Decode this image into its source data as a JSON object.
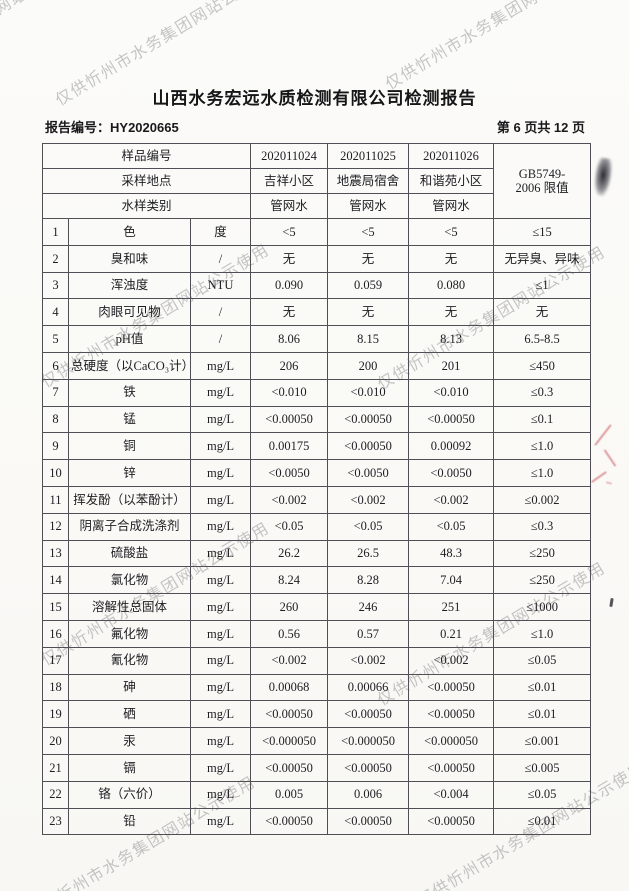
{
  "watermark": {
    "text": "仅供忻州市水务集团网站公示使用"
  },
  "title": "山西水务宏远水质检测有限公司检测报告",
  "meta": {
    "report_no_label": "报告编号：",
    "report_no": "HY2020665",
    "page_info": "第 6 页共 12 页"
  },
  "colors": {
    "paper": "#fbfbf9",
    "ink": "#1e1e23",
    "table_border": "#4f4f55",
    "watermark_gray": "#7a7a7c",
    "red_pen": "#c63e48"
  },
  "table": {
    "header": {
      "sample_no_label": "样品编号",
      "sample_nos": [
        "202011024",
        "202011025",
        "202011026"
      ],
      "location_label": "采样地点",
      "locations": [
        "吉祥小区",
        "地震局宿舍",
        "和谐苑小区"
      ],
      "type_label": "水样类别",
      "types": [
        "管网水",
        "管网水",
        "管网水"
      ],
      "limit_line1": "GB5749-",
      "limit_line2": "2006 限值"
    },
    "rows": [
      {
        "no": "1",
        "name": "色",
        "unit": "度",
        "v1": "<5",
        "v2": "<5",
        "v3": "<5",
        "limit": "≤15"
      },
      {
        "no": "2",
        "name": "臭和味",
        "unit": "/",
        "v1": "无",
        "v2": "无",
        "v3": "无",
        "limit": "无异臭、异味"
      },
      {
        "no": "3",
        "name": "浑浊度",
        "unit": "NTU",
        "v1": "0.090",
        "v2": "0.059",
        "v3": "0.080",
        "limit": "≤1"
      },
      {
        "no": "4",
        "name": "肉眼可见物",
        "unit": "/",
        "v1": "无",
        "v2": "无",
        "v3": "无",
        "limit": "无"
      },
      {
        "no": "5",
        "name": "pH值",
        "unit": "/",
        "v1": "8.06",
        "v2": "8.15",
        "v3": "8.13",
        "limit": "6.5-8.5"
      },
      {
        "no": "6",
        "name": "总硬度（以CaCO₃计）",
        "unit": "mg/L",
        "v1": "206",
        "v2": "200",
        "v3": "201",
        "limit": "≤450"
      },
      {
        "no": "7",
        "name": "铁",
        "unit": "mg/L",
        "v1": "<0.010",
        "v2": "<0.010",
        "v3": "<0.010",
        "limit": "≤0.3"
      },
      {
        "no": "8",
        "name": "锰",
        "unit": "mg/L",
        "v1": "<0.00050",
        "v2": "<0.00050",
        "v3": "<0.00050",
        "limit": "≤0.1"
      },
      {
        "no": "9",
        "name": "铜",
        "unit": "mg/L",
        "v1": "0.00175",
        "v2": "<0.00050",
        "v3": "0.00092",
        "limit": "≤1.0"
      },
      {
        "no": "10",
        "name": "锌",
        "unit": "mg/L",
        "v1": "<0.0050",
        "v2": "<0.0050",
        "v3": "<0.0050",
        "limit": "≤1.0"
      },
      {
        "no": "11",
        "name": "挥发酚（以苯酚计）",
        "unit": "mg/L",
        "v1": "<0.002",
        "v2": "<0.002",
        "v3": "<0.002",
        "limit": "≤0.002"
      },
      {
        "no": "12",
        "name": "阴离子合成洗涤剂",
        "unit": "mg/L",
        "v1": "<0.05",
        "v2": "<0.05",
        "v3": "<0.05",
        "limit": "≤0.3"
      },
      {
        "no": "13",
        "name": "硫酸盐",
        "unit": "mg/L",
        "v1": "26.2",
        "v2": "26.5",
        "v3": "48.3",
        "limit": "≤250"
      },
      {
        "no": "14",
        "name": "氯化物",
        "unit": "mg/L",
        "v1": "8.24",
        "v2": "8.28",
        "v3": "7.04",
        "limit": "≤250"
      },
      {
        "no": "15",
        "name": "溶解性总固体",
        "unit": "mg/L",
        "v1": "260",
        "v2": "246",
        "v3": "251",
        "limit": "≤1000"
      },
      {
        "no": "16",
        "name": "氟化物",
        "unit": "mg/L",
        "v1": "0.56",
        "v2": "0.57",
        "v3": "0.21",
        "limit": "≤1.0"
      },
      {
        "no": "17",
        "name": "氰化物",
        "unit": "mg/L",
        "v1": "<0.002",
        "v2": "<0.002",
        "v3": "<0.002",
        "limit": "≤0.05"
      },
      {
        "no": "18",
        "name": "砷",
        "unit": "mg/L",
        "v1": "0.00068",
        "v2": "0.00066",
        "v3": "<0.00050",
        "limit": "≤0.01"
      },
      {
        "no": "19",
        "name": "硒",
        "unit": "mg/L",
        "v1": "<0.00050",
        "v2": "<0.00050",
        "v3": "<0.00050",
        "limit": "≤0.01"
      },
      {
        "no": "20",
        "name": "汞",
        "unit": "mg/L",
        "v1": "<0.000050",
        "v2": "<0.000050",
        "v3": "<0.000050",
        "limit": "≤0.001"
      },
      {
        "no": "21",
        "name": "镉",
        "unit": "mg/L",
        "v1": "<0.00050",
        "v2": "<0.00050",
        "v3": "<0.00050",
        "limit": "≤0.005"
      },
      {
        "no": "22",
        "name": "铬（六价）",
        "unit": "mg/L",
        "v1": "0.005",
        "v2": "0.006",
        "v3": "<0.004",
        "limit": "≤0.05"
      },
      {
        "no": "23",
        "name": "铅",
        "unit": "mg/L",
        "v1": "<0.00050",
        "v2": "<0.00050",
        "v3": "<0.00050",
        "limit": "≤0.01"
      }
    ]
  }
}
